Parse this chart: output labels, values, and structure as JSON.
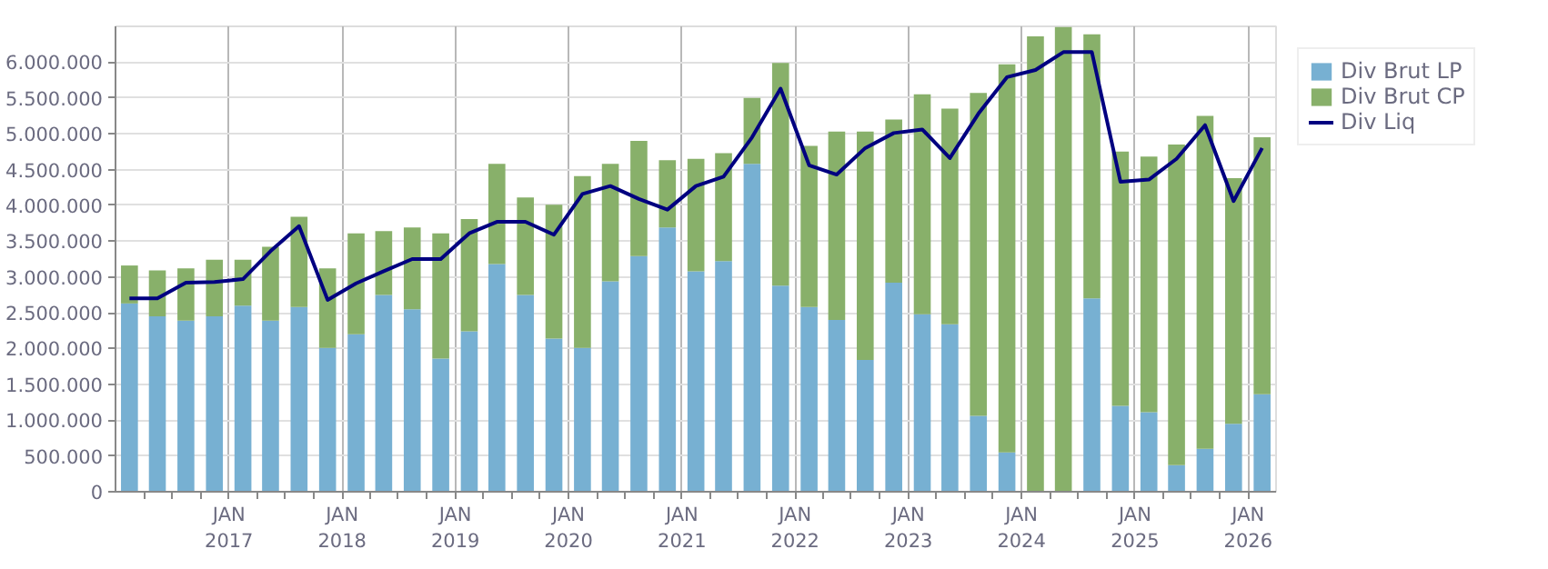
{
  "chart_data": {
    "type": "bar",
    "stacked": true,
    "x": [
      "2016-02-15",
      "2016-05-15",
      "2016-08-15",
      "2016-11-15",
      "2017-02-15",
      "2017-05-15",
      "2017-08-15",
      "2017-11-15",
      "2018-02-15",
      "2018-05-15",
      "2018-08-15",
      "2018-11-15",
      "2019-02-15",
      "2019-05-15",
      "2019-08-15",
      "2019-11-15",
      "2020-02-15",
      "2020-05-15",
      "2020-08-15",
      "2020-11-15",
      "2021-02-15",
      "2021-05-15",
      "2021-08-15",
      "2021-11-15",
      "2022-02-15",
      "2022-05-15",
      "2022-08-15",
      "2022-11-15",
      "2023-02-15",
      "2023-05-15",
      "2023-08-15",
      "2023-11-15",
      "2024-02-15",
      "2024-05-15",
      "2024-08-15",
      "2024-11-15",
      "2025-02-15",
      "2025-05-15",
      "2025-08-15",
      "2025-11-15",
      "2026-02-15"
    ],
    "series": [
      {
        "name": "Div Brut LP",
        "color": "#77b0d2",
        "values": [
          2630000,
          2450000,
          2390000,
          2450000,
          2600000,
          2390000,
          2580000,
          2010000,
          2200000,
          2750000,
          2550000,
          1860000,
          2240000,
          3180000,
          2750000,
          2140000,
          2010000,
          2940000,
          3290000,
          3690000,
          3080000,
          3220000,
          4580000,
          2880000,
          2580000,
          2400000,
          1840000,
          2920000,
          2480000,
          2340000,
          1060000,
          550000,
          0,
          0,
          2700000,
          1200000,
          1110000,
          370000,
          600000,
          950000,
          1360000
        ]
      },
      {
        "name": "Div Brut CP",
        "color": "#88b06a",
        "values": [
          530000,
          640000,
          730000,
          790000,
          640000,
          1030000,
          1260000,
          1110000,
          1410000,
          890000,
          1140000,
          1750000,
          1570000,
          1400000,
          1360000,
          1870000,
          2400000,
          1640000,
          1610000,
          940000,
          1570000,
          1510000,
          920000,
          3110000,
          2250000,
          2630000,
          3190000,
          2280000,
          3070000,
          3010000,
          4510000,
          5420000,
          6360000,
          6490000,
          3690000,
          3550000,
          3570000,
          4480000,
          4650000,
          3430000,
          3590000
        ]
      },
      {
        "name": "Div Liq",
        "type": "line",
        "color": "#000080",
        "values": [
          2700000,
          2700000,
          2920000,
          2930000,
          2970000,
          3360000,
          3710000,
          2680000,
          2910000,
          3080000,
          3250000,
          3250000,
          3610000,
          3770000,
          3770000,
          3590000,
          4160000,
          4270000,
          4090000,
          3940000,
          4270000,
          4400000,
          4950000,
          5630000,
          4560000,
          4430000,
          4800000,
          5010000,
          5060000,
          4660000,
          5280000,
          5790000,
          5890000,
          6140000,
          6140000,
          4330000,
          4360000,
          4650000,
          5120000,
          4060000,
          4800000
        ]
      }
    ],
    "xlim": [
      "2016-01-01",
      "2026-04-01"
    ],
    "xticks": [
      {
        "value": "2016-04-01",
        "label": null
      },
      {
        "value": "2016-07-01",
        "label": null
      },
      {
        "value": "2016-10-01",
        "label": null
      },
      {
        "value": "2017-01-01",
        "label": "JAN\n2017"
      },
      {
        "value": "2017-04-01",
        "label": null
      },
      {
        "value": "2017-07-01",
        "label": null
      },
      {
        "value": "2017-10-01",
        "label": null
      },
      {
        "value": "2018-01-01",
        "label": "JAN\n2018"
      },
      {
        "value": "2018-04-01",
        "label": null
      },
      {
        "value": "2018-07-01",
        "label": null
      },
      {
        "value": "2018-10-01",
        "label": null
      },
      {
        "value": "2019-01-01",
        "label": "JAN\n2019"
      },
      {
        "value": "2019-04-01",
        "label": null
      },
      {
        "value": "2019-07-01",
        "label": null
      },
      {
        "value": "2019-10-01",
        "label": null
      },
      {
        "value": "2020-01-01",
        "label": "JAN\n2020"
      },
      {
        "value": "2020-04-01",
        "label": null
      },
      {
        "value": "2020-07-01",
        "label": null
      },
      {
        "value": "2020-10-01",
        "label": null
      },
      {
        "value": "2021-01-01",
        "label": "JAN\n2021"
      },
      {
        "value": "2021-04-01",
        "label": null
      },
      {
        "value": "2021-07-01",
        "label": null
      },
      {
        "value": "2021-10-01",
        "label": null
      },
      {
        "value": "2022-01-01",
        "label": "JAN\n2022"
      },
      {
        "value": "2022-04-01",
        "label": null
      },
      {
        "value": "2022-07-01",
        "label": null
      },
      {
        "value": "2022-10-01",
        "label": null
      },
      {
        "value": "2023-01-01",
        "label": "JAN\n2023"
      },
      {
        "value": "2023-04-01",
        "label": null
      },
      {
        "value": "2023-07-01",
        "label": null
      },
      {
        "value": "2023-10-01",
        "label": null
      },
      {
        "value": "2024-01-01",
        "label": "JAN\n2024"
      },
      {
        "value": "2024-04-01",
        "label": null
      },
      {
        "value": "2024-07-01",
        "label": null
      },
      {
        "value": "2024-10-01",
        "label": null
      },
      {
        "value": "2025-01-01",
        "label": "JAN\n2025"
      },
      {
        "value": "2025-04-01",
        "label": null
      },
      {
        "value": "2025-07-01",
        "label": null
      },
      {
        "value": "2025-10-01",
        "label": null
      },
      {
        "value": "2026-01-01",
        "label": "JAN\n2026"
      }
    ],
    "ylim": [
      0,
      6500000
    ],
    "yticks": [
      0,
      {
        "value": 500000,
        "label": "500.000"
      },
      {
        "value": 1000000,
        "label": "1.000.000"
      },
      {
        "value": 1500000,
        "label": "1.500.000"
      },
      {
        "value": 2000000,
        "label": "2.000.000"
      },
      {
        "value": 2500000,
        "label": "2.500.000"
      },
      {
        "value": 3000000,
        "label": "3.000.000"
      },
      {
        "value": 3500000,
        "label": "3.500.000"
      },
      {
        "value": 4000000,
        "label": "4.000.000"
      },
      {
        "value": 4500000,
        "label": "4.500.000"
      },
      {
        "value": 5000000,
        "label": "5.000.000"
      },
      {
        "value": 5500000,
        "label": "5.500.000"
      },
      {
        "value": 6000000,
        "label": "6.000.000"
      }
    ],
    "grid": true,
    "legend": "top right",
    "line_style": "solid",
    "marker": "none"
  }
}
